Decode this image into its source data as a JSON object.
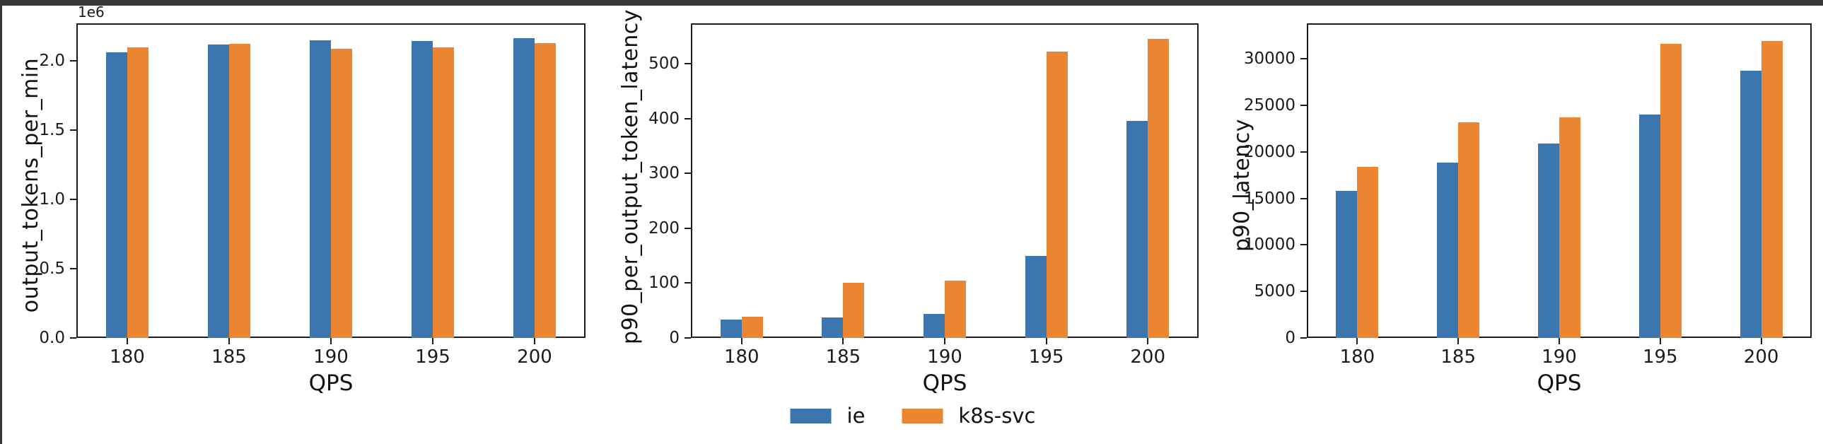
{
  "figure": {
    "background_color": "#ffffff",
    "window_band_color": "#383838"
  },
  "colors": {
    "ie": "#3b76af",
    "k8s_svc": "#ec8532",
    "spine": "#1c1c1c",
    "text": "#111111"
  },
  "legend": {
    "position": "lower center",
    "items": [
      {
        "label": "ie",
        "color": "#3b76af"
      },
      {
        "label": "k8s-svc",
        "color": "#ec8532"
      }
    ]
  },
  "chart_data": [
    {
      "type": "bar",
      "title": "",
      "ylabel": "output_tokens_per_min",
      "xlabel": "QPS",
      "offset_text": "1e6",
      "grid": false,
      "categories": [
        "180",
        "185",
        "190",
        "195",
        "200"
      ],
      "series": [
        {
          "name": "ie",
          "color": "#3b76af",
          "values": [
            2060000,
            2115000,
            2150000,
            2140000,
            2165000
          ]
        },
        {
          "name": "k8s-svc",
          "color": "#ec8532",
          "values": [
            2095000,
            2120000,
            2085000,
            2095000,
            2125000
          ]
        }
      ],
      "ylim": [
        0,
        2270000
      ],
      "yticks": [
        0,
        500000,
        1000000,
        1500000,
        2000000
      ],
      "ytick_labels": [
        "0.0",
        "0.5",
        "1.0",
        "1.5",
        "2.0"
      ]
    },
    {
      "type": "bar",
      "title": "",
      "ylabel": "p90_per_output_token_latency",
      "xlabel": "QPS",
      "offset_text": "",
      "grid": false,
      "categories": [
        "180",
        "185",
        "190",
        "195",
        "200"
      ],
      "series": [
        {
          "name": "ie",
          "color": "#3b76af",
          "values": [
            33,
            38,
            44,
            150,
            396
          ]
        },
        {
          "name": "k8s-svc",
          "color": "#ec8532",
          "values": [
            39,
            100,
            104,
            522,
            545
          ]
        }
      ],
      "ylim": [
        0,
        574
      ],
      "yticks": [
        0,
        100,
        200,
        300,
        400,
        500
      ],
      "ytick_labels": [
        "0",
        "100",
        "200",
        "300",
        "400",
        "500"
      ]
    },
    {
      "type": "bar",
      "title": "",
      "ylabel": "p90_latency",
      "xlabel": "QPS",
      "offset_text": "",
      "grid": false,
      "categories": [
        "180",
        "185",
        "190",
        "195",
        "200"
      ],
      "series": [
        {
          "name": "ie",
          "color": "#3b76af",
          "values": [
            15800,
            18800,
            20900,
            24000,
            28700
          ]
        },
        {
          "name": "k8s-svc",
          "color": "#ec8532",
          "values": [
            18400,
            23200,
            23700,
            31600,
            31900
          ]
        }
      ],
      "ylim": [
        0,
        33800
      ],
      "yticks": [
        0,
        5000,
        10000,
        15000,
        20000,
        25000,
        30000
      ],
      "ytick_labels": [
        "0",
        "5000",
        "10000",
        "15000",
        "20000",
        "25000",
        "30000"
      ]
    }
  ]
}
